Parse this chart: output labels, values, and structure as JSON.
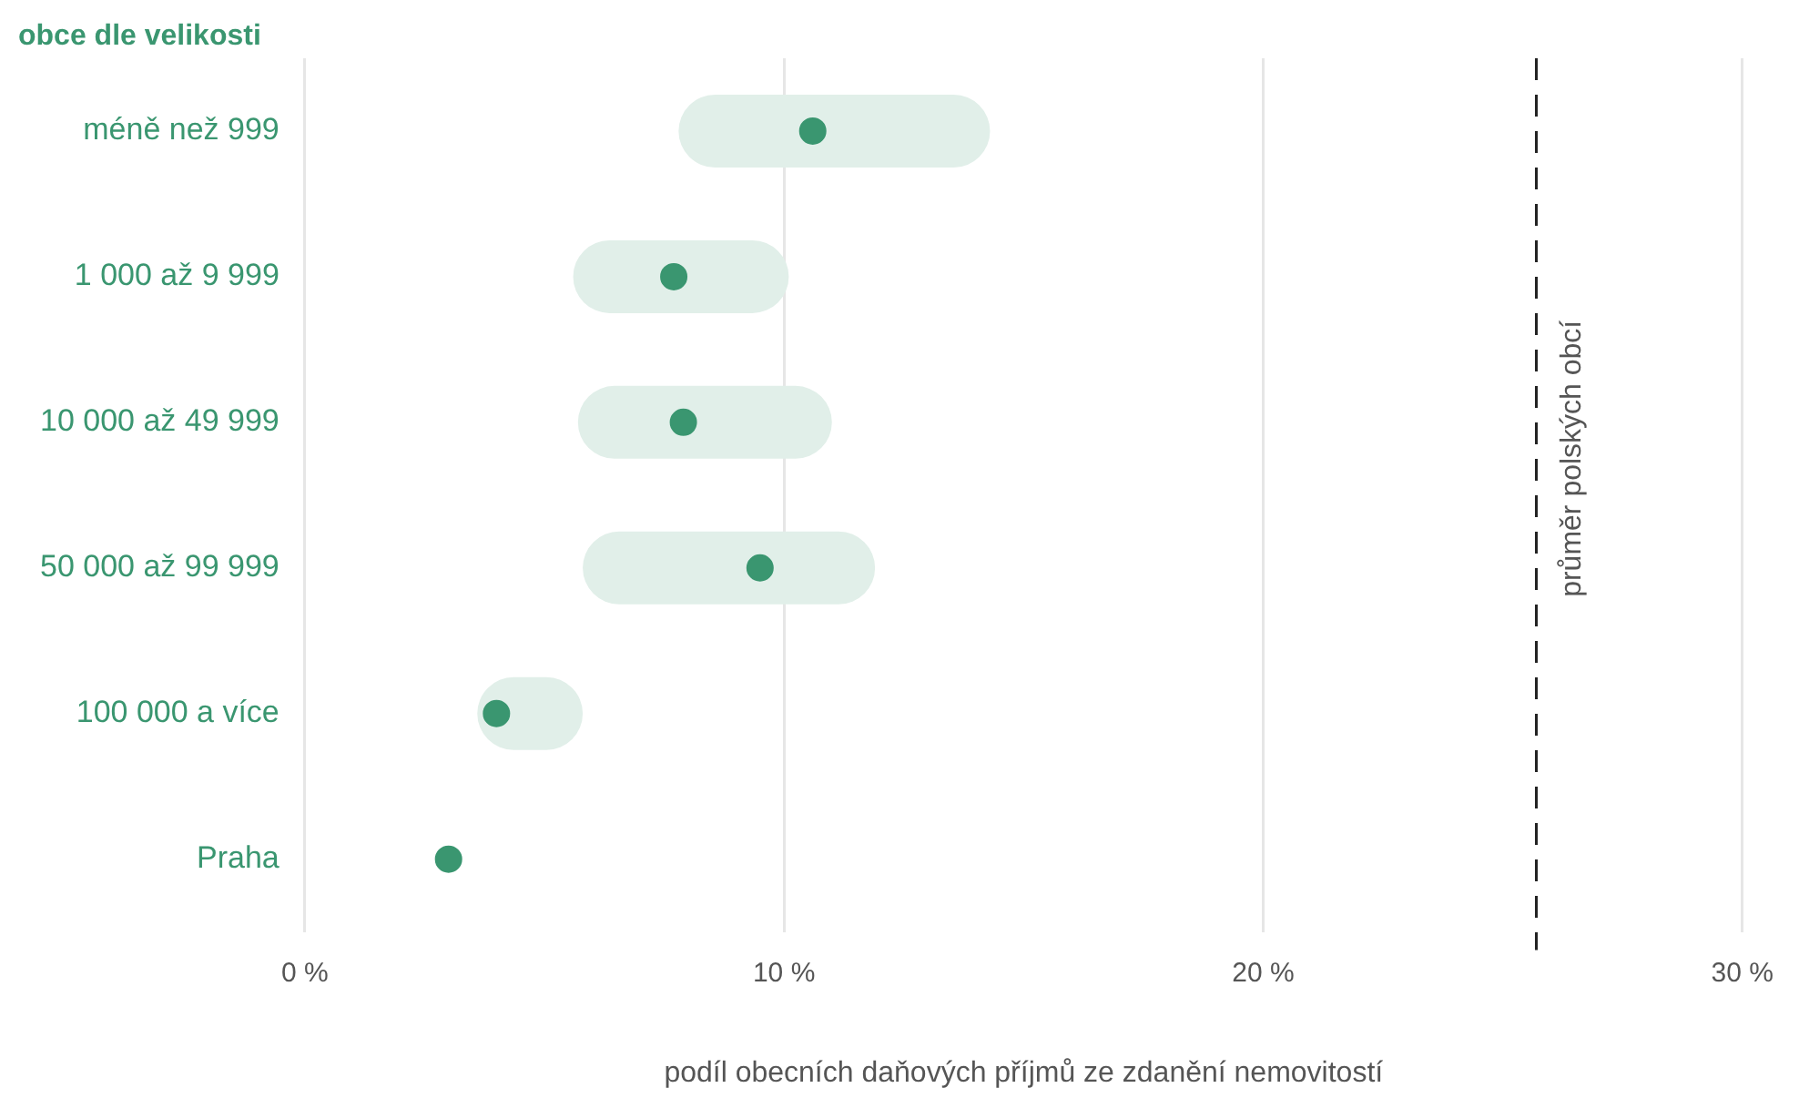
{
  "chart_data": {
    "type": "bar",
    "orientation": "horizontal",
    "ylabel": "obce dle velikosti",
    "xlabel": "podíl obecních daňových příjmů ze zdanění nemovitostí",
    "categories": [
      "méně než 999",
      "1 000 až 9 999",
      "10 000 až 49 999",
      "50 000 až 99 999",
      "100 000 a více",
      "Praha"
    ],
    "series": [
      {
        "color": "#e1efe9",
        "base": [
          7.8,
          5.6,
          5.7,
          5.8,
          3.6,
          null
        ],
        "values": [
          6.5,
          4.5,
          5.3,
          6.1,
          2.2,
          null
        ]
      },
      {
        "type": "scatter",
        "color": "#3a9670",
        "values": [
          10.6,
          7.7,
          7.9,
          9.5,
          4.0,
          3.0
        ]
      }
    ],
    "xlim": [
      0,
      30
    ],
    "xticks": [
      {
        "value": 0,
        "label": "0 %"
      },
      {
        "value": 10,
        "label": "10 %"
      },
      {
        "value": 20,
        "label": "20 %"
      },
      {
        "value": 30,
        "label": "30 %"
      }
    ],
    "ref_lines": [
      {
        "axis": "x",
        "value": 25.7,
        "label": "průměr polských obcí",
        "color": "#222222",
        "line_style": "dashed"
      }
    ],
    "grid": "x",
    "marker": "circle",
    "legend": false
  }
}
